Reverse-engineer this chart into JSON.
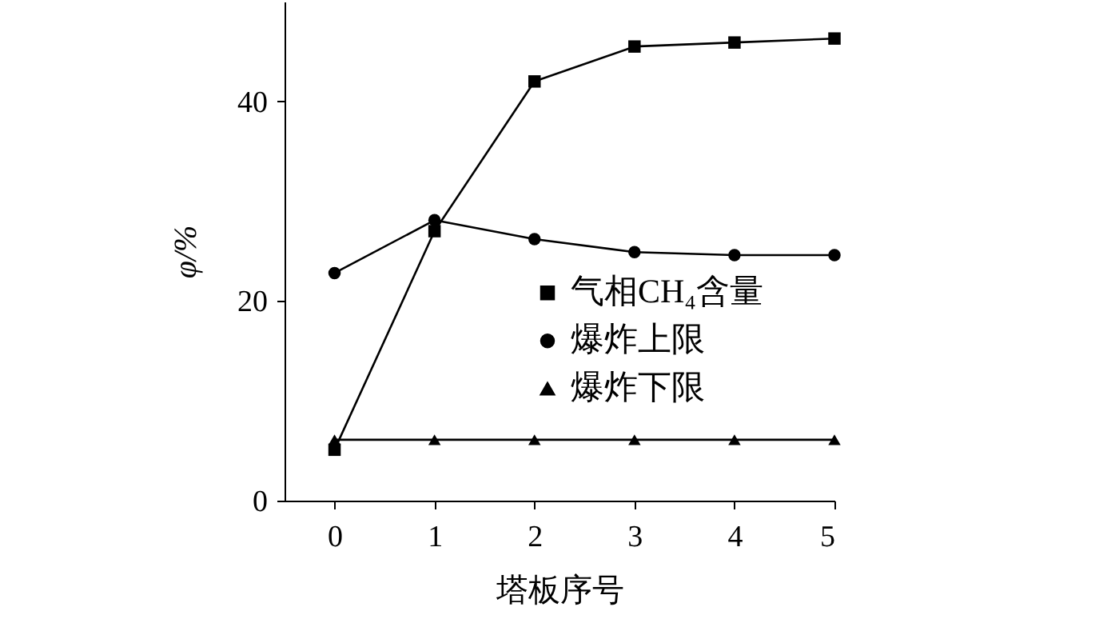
{
  "chart_data": {
    "type": "line",
    "xlabel": "塔板序号",
    "ylabel": "φ/%",
    "x": [
      0,
      1,
      2,
      3,
      4,
      5
    ],
    "xlim": [
      -0.5,
      5
    ],
    "xticks": [
      0,
      1,
      2,
      3,
      4,
      5
    ],
    "ylim": [
      0,
      50
    ],
    "yticks": [
      0,
      20,
      40
    ],
    "legend": "right",
    "grid": false,
    "series": [
      {
        "name": "气相CH₄含量",
        "color": "#000000",
        "marker": "square",
        "values": [
          5.1,
          27,
          42,
          45.5,
          45.9,
          46.3
        ]
      },
      {
        "name": "爆炸上限",
        "color": "#000000",
        "marker": "circle",
        "values": [
          22.8,
          28.1,
          26.2,
          24.9,
          24.6,
          24.6
        ]
      },
      {
        "name": "爆炸下限",
        "color": "#000000",
        "marker": "triangle",
        "values": [
          6.1,
          6.1,
          6.1,
          6.1,
          6.1,
          6.1
        ]
      }
    ]
  }
}
